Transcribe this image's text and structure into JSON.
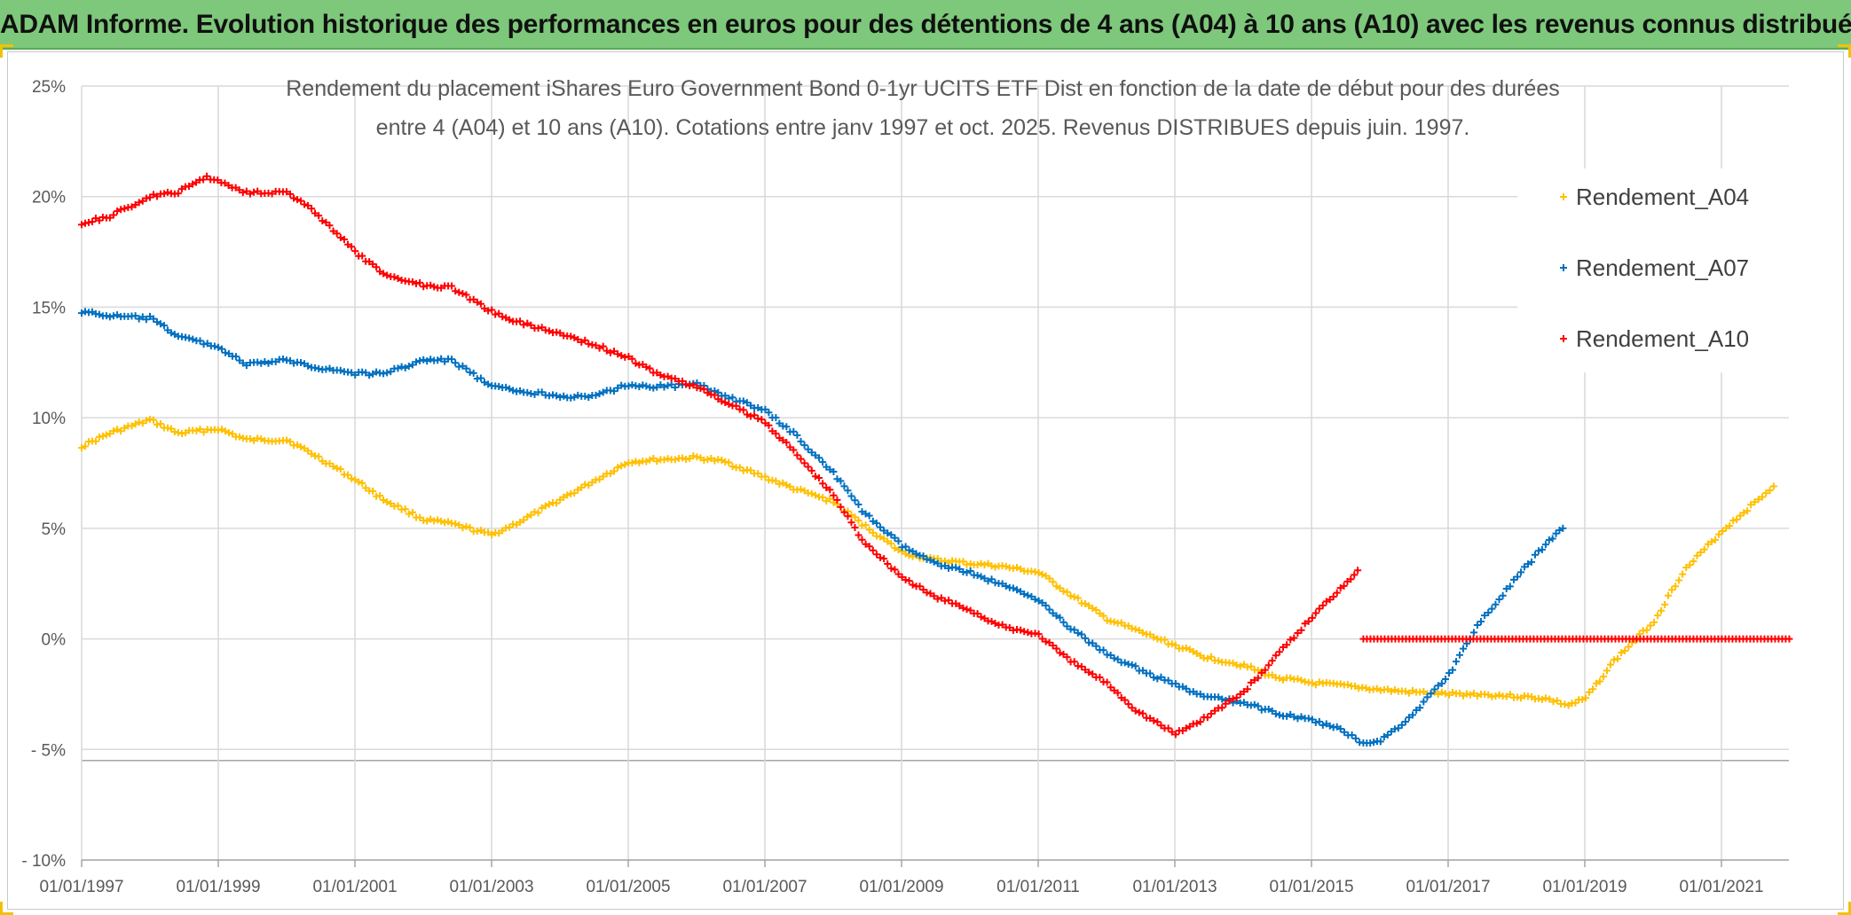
{
  "header": {
    "title": "ADAM Informe. Evolution historique des performances en euros pour des détentions de 4 ans (A04) à 10 ans (A10) avec les revenus connus distribués"
  },
  "chart_data": {
    "type": "scatter",
    "title_line1": "Rendement du placement iShares Euro Government Bond 0-1yr UCITS ETF Dist en fonction de la date de début pour des durées",
    "title_line2": "entre 4 (A04) et 10 ans (A10). Cotations entre janv 1997 et oct. 2025. Revenus DISTRIBUES depuis juin. 1997.",
    "xlabel": "",
    "ylabel": "",
    "x_ticks": [
      "01/01/1997",
      "01/01/1999",
      "01/01/2001",
      "01/01/2003",
      "01/01/2005",
      "01/01/2007",
      "01/01/2009",
      "01/01/2011",
      "01/01/2013",
      "01/01/2015",
      "01/01/2017",
      "01/01/2019",
      "01/01/2021"
    ],
    "x_range": [
      "1997-01-01",
      "2022-01-01"
    ],
    "y_ticks": [
      "25%",
      "20%",
      "15%",
      "10%",
      "5%",
      "0%",
      "- 5%",
      "- 10%"
    ],
    "ylim": [
      -10,
      25
    ],
    "grid": true,
    "legend_position": "right",
    "marker": "+",
    "series": [
      {
        "name": "Rendement_A04",
        "color": "#ffc000",
        "points": [
          [
            "1997-01-01",
            8.7
          ],
          [
            "1997-06-01",
            9.3
          ],
          [
            "1998-01-01",
            9.9
          ],
          [
            "1998-06-01",
            9.3
          ],
          [
            "1999-01-01",
            9.5
          ],
          [
            "1999-06-01",
            9.0
          ],
          [
            "2000-01-01",
            9.0
          ],
          [
            "2000-06-01",
            8.3
          ],
          [
            "2001-01-01",
            7.2
          ],
          [
            "2001-06-01",
            6.3
          ],
          [
            "2002-01-01",
            5.4
          ],
          [
            "2002-06-01",
            5.2
          ],
          [
            "2003-01-01",
            4.7
          ],
          [
            "2003-06-01",
            5.3
          ],
          [
            "2004-01-01",
            6.3
          ],
          [
            "2004-06-01",
            7.0
          ],
          [
            "2005-01-01",
            8.0
          ],
          [
            "2005-06-01",
            8.1
          ],
          [
            "2006-01-01",
            8.2
          ],
          [
            "2006-06-01",
            8.0
          ],
          [
            "2007-01-01",
            7.3
          ],
          [
            "2007-06-01",
            6.8
          ],
          [
            "2008-01-01",
            6.2
          ],
          [
            "2008-06-01",
            5.2
          ],
          [
            "2009-01-01",
            3.9
          ],
          [
            "2009-06-01",
            3.6
          ],
          [
            "2010-01-01",
            3.4
          ],
          [
            "2010-06-01",
            3.3
          ],
          [
            "2011-01-01",
            3.0
          ],
          [
            "2011-06-01",
            2.1
          ],
          [
            "2012-01-01",
            0.9
          ],
          [
            "2012-06-01",
            0.4
          ],
          [
            "2013-01-01",
            -0.3
          ],
          [
            "2013-06-01",
            -0.8
          ],
          [
            "2014-01-01",
            -1.2
          ],
          [
            "2014-06-01",
            -1.7
          ],
          [
            "2015-01-01",
            -2.0
          ],
          [
            "2015-06-01",
            -2.1
          ],
          [
            "2016-01-01",
            -2.3
          ],
          [
            "2016-06-01",
            -2.4
          ],
          [
            "2017-01-01",
            -2.5
          ],
          [
            "2017-06-01",
            -2.5
          ],
          [
            "2018-01-01",
            -2.6
          ],
          [
            "2018-06-01",
            -2.7
          ],
          [
            "2018-10-01",
            -3.0
          ],
          [
            "2019-01-01",
            -2.7
          ],
          [
            "2019-06-01",
            -1.0
          ],
          [
            "2020-01-01",
            0.8
          ],
          [
            "2020-06-01",
            3.0
          ],
          [
            "2021-01-01",
            4.9
          ],
          [
            "2021-06-01",
            6.0
          ],
          [
            "2021-10-01",
            6.9
          ]
        ]
      },
      {
        "name": "Rendement_A07",
        "color": "#0070c0",
        "points": [
          [
            "1997-01-01",
            14.8
          ],
          [
            "1997-06-01",
            14.6
          ],
          [
            "1998-01-01",
            14.5
          ],
          [
            "1998-06-01",
            13.7
          ],
          [
            "1999-01-01",
            13.2
          ],
          [
            "1999-06-01",
            12.4
          ],
          [
            "2000-01-01",
            12.6
          ],
          [
            "2000-06-01",
            12.3
          ],
          [
            "2001-01-01",
            12.0
          ],
          [
            "2001-06-01",
            12.0
          ],
          [
            "2002-01-01",
            12.6
          ],
          [
            "2002-06-01",
            12.6
          ],
          [
            "2003-01-01",
            11.4
          ],
          [
            "2003-06-01",
            11.2
          ],
          [
            "2004-01-01",
            11.0
          ],
          [
            "2004-06-01",
            10.9
          ],
          [
            "2005-01-01",
            11.5
          ],
          [
            "2005-06-01",
            11.4
          ],
          [
            "2006-01-01",
            11.5
          ],
          [
            "2006-06-01",
            11.0
          ],
          [
            "2007-01-01",
            10.3
          ],
          [
            "2007-06-01",
            9.3
          ],
          [
            "2008-01-01",
            7.5
          ],
          [
            "2008-06-01",
            5.8
          ],
          [
            "2009-01-01",
            4.2
          ],
          [
            "2009-06-01",
            3.5
          ],
          [
            "2010-01-01",
            3.0
          ],
          [
            "2010-06-01",
            2.5
          ],
          [
            "2011-01-01",
            1.8
          ],
          [
            "2011-06-01",
            0.6
          ],
          [
            "2012-01-01",
            -0.7
          ],
          [
            "2012-06-01",
            -1.3
          ],
          [
            "2013-01-01",
            -2.1
          ],
          [
            "2013-06-01",
            -2.6
          ],
          [
            "2014-01-01",
            -2.9
          ],
          [
            "2014-06-01",
            -3.3
          ],
          [
            "2015-01-01",
            -3.7
          ],
          [
            "2015-06-01",
            -4.1
          ],
          [
            "2015-10-01",
            -4.7
          ],
          [
            "2016-01-01",
            -4.6
          ],
          [
            "2016-06-01",
            -3.6
          ],
          [
            "2017-01-01",
            -1.6
          ],
          [
            "2017-06-01",
            0.6
          ],
          [
            "2018-01-01",
            2.8
          ],
          [
            "2018-06-01",
            4.3
          ],
          [
            "2018-09-01",
            5.0
          ]
        ]
      },
      {
        "name": "Rendement_A10",
        "color": "#ff0000",
        "points": [
          [
            "1997-01-01",
            18.8
          ],
          [
            "1997-06-01",
            19.1
          ],
          [
            "1998-01-01",
            20.0
          ],
          [
            "1998-06-01",
            20.2
          ],
          [
            "1998-11-01",
            20.9
          ],
          [
            "1999-06-01",
            20.2
          ],
          [
            "2000-01-01",
            20.2
          ],
          [
            "2000-06-01",
            19.3
          ],
          [
            "2001-01-01",
            17.5
          ],
          [
            "2001-06-01",
            16.5
          ],
          [
            "2002-01-01",
            16.0
          ],
          [
            "2002-06-01",
            15.9
          ],
          [
            "2003-01-01",
            14.8
          ],
          [
            "2003-06-01",
            14.3
          ],
          [
            "2004-01-01",
            13.8
          ],
          [
            "2004-06-01",
            13.4
          ],
          [
            "2005-01-01",
            12.7
          ],
          [
            "2005-06-01",
            12.0
          ],
          [
            "2006-01-01",
            11.4
          ],
          [
            "2006-06-01",
            10.7
          ],
          [
            "2007-01-01",
            9.8
          ],
          [
            "2007-06-01",
            8.5
          ],
          [
            "2008-01-01",
            6.5
          ],
          [
            "2008-06-01",
            4.5
          ],
          [
            "2009-01-01",
            2.8
          ],
          [
            "2009-06-01",
            2.0
          ],
          [
            "2010-01-01",
            1.3
          ],
          [
            "2010-06-01",
            0.6
          ],
          [
            "2011-01-01",
            0.2
          ],
          [
            "2011-06-01",
            -0.9
          ],
          [
            "2012-01-01",
            -2.0
          ],
          [
            "2012-06-01",
            -3.2
          ],
          [
            "2013-01-01",
            -4.3
          ],
          [
            "2013-06-01",
            -3.6
          ],
          [
            "2014-01-01",
            -2.4
          ],
          [
            "2014-06-01",
            -1.0
          ],
          [
            "2015-01-01",
            1.0
          ],
          [
            "2015-06-01",
            2.3
          ],
          [
            "2015-09-01",
            3.1
          ]
        ],
        "tail_zero": [
          [
            "2015-10-01",
            0.0
          ],
          [
            "2022-01-01",
            0.0
          ]
        ]
      }
    ]
  }
}
